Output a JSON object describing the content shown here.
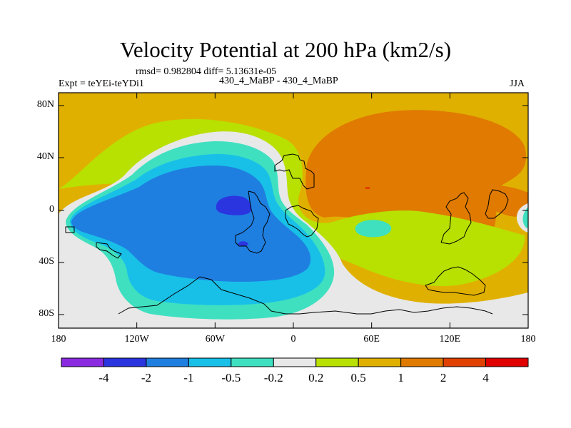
{
  "title": "Velocity Potential at 200 hPa (km2/s)",
  "stats_line": "rmsd= 0.982804 diff= 5.13631e-05",
  "left_label": "Expt = teYEi-teYDi1",
  "center_label": "430_4_MaBP - 430_4_MaBP",
  "right_label": "JJA",
  "y_ticks": [
    "80N",
    "40N",
    "0",
    "40S",
    "80S"
  ],
  "x_ticks": [
    "180",
    "120W",
    "60W",
    "0",
    "60E",
    "120E",
    "180"
  ],
  "colorbar": {
    "colors": [
      "#8a2be2",
      "#2a35e0",
      "#1f7fe0",
      "#18c0e8",
      "#3fe0c0",
      "#e8e8e8",
      "#b8e000",
      "#e0b000",
      "#e07a00",
      "#e04000",
      "#e00000"
    ],
    "labels": [
      "-4",
      "-2",
      "-1",
      "-0.5",
      "-0.2",
      "0.2",
      "0.5",
      "1",
      "2",
      "4"
    ]
  },
  "field_colors": {
    "background": "#e0b000",
    "strong_positive": "#e07a00",
    "max_positive": "#e04000",
    "weak_positive": "#b8e000",
    "neutral": "#e8e8e8",
    "weak_negative": "#3fe0c0",
    "moderate_negative": "#18c0e8",
    "negative": "#1f7fe0",
    "strong_negative": "#2a35e0"
  }
}
